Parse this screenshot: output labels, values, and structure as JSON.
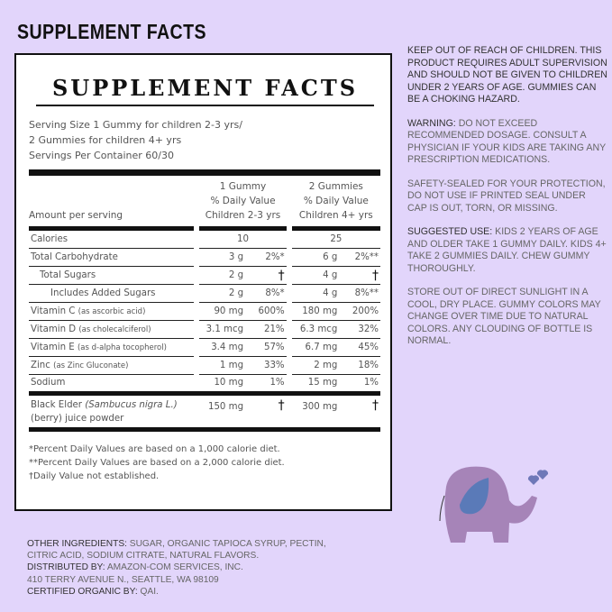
{
  "header": "SUPPLEMENT FACTS",
  "label": {
    "title": "SUPPLEMENT FACTS",
    "serving": [
      "Serving Size 1 Gummy for children 2-3 yrs/",
      "2 Gummies for children 4+ yrs",
      "Servings Per Container 60/30"
    ],
    "columns": {
      "amount": "Amount per serving",
      "col1": [
        "1 Gummy",
        "% Daily Value",
        "Children 2-3 yrs"
      ],
      "col2": [
        "2 Gummies",
        "% Daily Value",
        "Children 4+ yrs"
      ]
    },
    "rows": [
      {
        "name": "Calories",
        "note": "",
        "a1": "10",
        "d1": "",
        "a2": "25",
        "d2": ""
      },
      {
        "name": "Total Carbohydrate",
        "note": "",
        "a1": "3 g",
        "d1": "2%*",
        "a2": "6 g",
        "d2": "2%**"
      },
      {
        "name": "Total Sugars",
        "note": "",
        "a1": "2 g",
        "d1": "†",
        "a2": "4 g",
        "d2": "†"
      },
      {
        "name": "Includes Added Sugars",
        "note": "",
        "a1": "2 g",
        "d1": "8%*",
        "a2": "4 g",
        "d2": "8%**"
      },
      {
        "name": "Vitamin C",
        "note": "(as ascorbic acid)",
        "a1": "90 mg",
        "d1": "600%",
        "a2": "180 mg",
        "d2": "200%"
      },
      {
        "name": "Vitamin D",
        "note": "(as cholecalciferol)",
        "a1": "3.1 mcg",
        "d1": "21%",
        "a2": "6.3 mcg",
        "d2": "32%"
      },
      {
        "name": "Vitamin E",
        "note": "(as d-alpha tocopherol)",
        "a1": "3.4 mg",
        "d1": "57%",
        "a2": "6.7 mg",
        "d2": "45%"
      },
      {
        "name": "Zinc",
        "note": "(as Zinc Gluconate)",
        "a1": "1 mg",
        "d1": "33%",
        "a2": "2 mg",
        "d2": "18%"
      },
      {
        "name": "Sodium",
        "note": "",
        "a1": "10 mg",
        "d1": "1%",
        "a2": "15 mg",
        "d2": "1%"
      }
    ],
    "elder": {
      "name": "Black Elder ",
      "latin": "(Sambucus nigra L.)",
      "line2": "(berry) juice powder",
      "a1": "150 mg",
      "d1": "†",
      "a2": "300 mg",
      "d2": "†"
    },
    "footnotes": [
      "*Percent Daily Values are based on a 1,000 calorie diet.",
      "**Percent Daily Values are based on a 2,000 calorie diet.",
      "†Daily Value not established."
    ]
  },
  "right": {
    "keep_out": "KEEP OUT OF REACH OF CHILDREN. THIS PRODUCT REQUIRES ADULT SUPERVISION AND SHOULD NOT BE GIVEN TO CHILDREN UNDER 2 YEARS OF AGE. GUMMIES CAN BE A CHOKING HAZARD.",
    "warning_label": "WARNING:",
    "warning": " DO NOT EXCEED RECOMMENDED DOSAGE. CONSULT A PHYSICIAN IF YOUR KIDS ARE TAKING ANY PRESCRIPTION MEDICATIONS.",
    "safety": "SAFETY-SEALED FOR YOUR PROTECTION, DO NOT USE IF PRINTED SEAL UNDER CAP IS OUT, TORN, OR MISSING.",
    "use_label": "SUGGESTED USE:",
    "use": " KIDS 2 YEARS OF AGE AND OLDER TAKE 1 GUMMY DAILY. KIDS 4+ TAKE 2 GUMMIES DAILY. CHEW GUMMY THOROUGHLY.",
    "storage": "STORE OUT OF DIRECT SUNLIGHT IN A COOL, DRY PLACE. GUMMY COLORS MAY CHANGE OVER TIME DUE TO NATURAL COLORS. ANY CLOUDING OF BOTTLE IS NORMAL."
  },
  "bottom": {
    "ing_label": "OTHER INGREDIENTS:",
    "ing1": " SUGAR, ORGANIC TAPIOCA SYRUP, PECTIN,",
    "ing2": "CITRIC ACID, SODIUM CITRATE, NATURAL FLAVORS.",
    "dist_label": "DISTRIBUTED BY:",
    "dist1": " AMAZON-COM SERVICES, INC.",
    "dist2": "410 TERRY AVENUE N., SEATTLE, WA 98109",
    "org_label": "CERTIFIED ORGANIC BY:",
    "org": " QAI."
  },
  "colors": {
    "background": "#e2d5fb",
    "elephant": "#9b7bb0",
    "ear": "#5a7ab8"
  },
  "illustration": "elephant-with-hearts"
}
